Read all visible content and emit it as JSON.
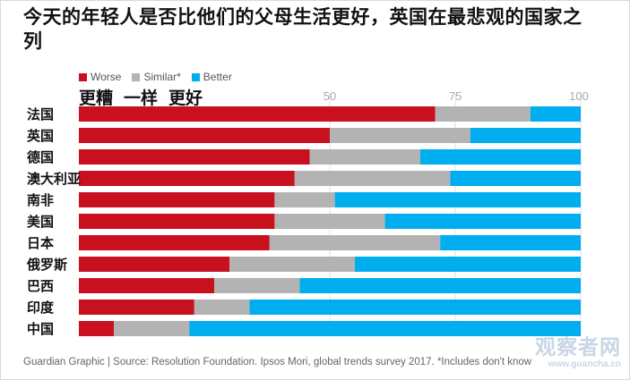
{
  "title": "今天的年轻人是否比他们的父母生活更好，英国在最悲观的国家之列",
  "legend": {
    "worse": "Worse",
    "similar": "Similar*",
    "better": "Better",
    "worse_cn": "更糟",
    "similar_cn": "一样",
    "better_cn": "更好"
  },
  "colors": {
    "worse": "#c8101e",
    "similar": "#b3b3b3",
    "better": "#00aeef"
  },
  "source": "Guardian Graphic | Source: Resolution Foundation. Ipsos Mori, global trends survey 2017. *Includes don't know",
  "watermark": {
    "main": "观察者网",
    "url": "www.guancha.cn"
  },
  "chart_data": {
    "type": "bar",
    "orientation": "horizontal",
    "stacked": true,
    "categories": [
      "法国",
      "英国",
      "德国",
      "澳大利亚",
      "南非",
      "美国",
      "日本",
      "俄罗斯",
      "巴西",
      "印度",
      "中国"
    ],
    "series": [
      {
        "name": "Worse",
        "values": [
          71,
          50,
          46,
          43,
          39,
          39,
          38,
          30,
          27,
          23,
          7
        ]
      },
      {
        "name": "Similar*",
        "values": [
          19,
          28,
          22,
          31,
          12,
          22,
          34,
          25,
          17,
          11,
          15
        ]
      },
      {
        "name": "Better",
        "values": [
          10,
          22,
          32,
          26,
          49,
          39,
          28,
          45,
          56,
          66,
          78
        ]
      }
    ],
    "xlim": [
      0,
      100
    ],
    "xticks": [
      50,
      75,
      100
    ],
    "grid": true,
    "legend_position": "top-left"
  }
}
